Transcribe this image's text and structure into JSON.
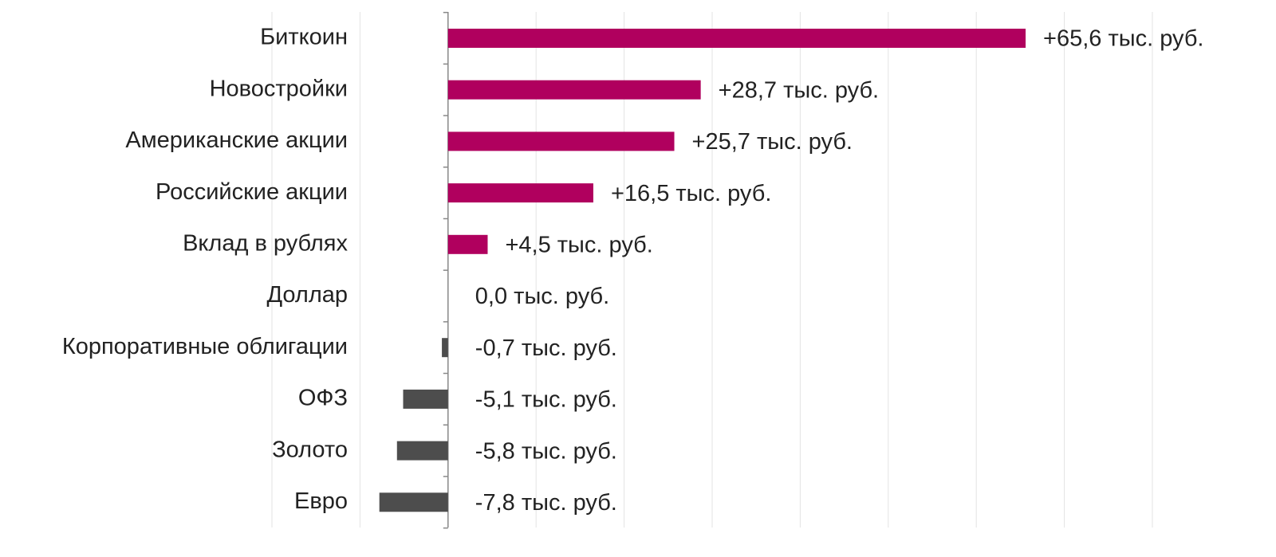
{
  "chart_data": {
    "type": "barh",
    "categories": [
      "Биткоин",
      "Новостройки",
      "Американские акции",
      "Российские акции",
      "Вклад в рублях",
      "Доллар",
      "Корпоративные облигации",
      "ОФЗ",
      "Золото",
      "Евро"
    ],
    "values": [
      65.6,
      28.7,
      25.7,
      16.5,
      4.5,
      0.0,
      -0.7,
      -5.1,
      -5.8,
      -7.8
    ],
    "value_labels": [
      "+65,6 тыс. руб.",
      "+28,7 тыс. руб.",
      "+25,7 тыс. руб.",
      "+16,5 тыс. руб.",
      "+4,5 тыс. руб.",
      "0,0 тыс. руб.",
      "-0,7 тыс. руб.",
      "-5,1 тыс. руб.",
      "-5,8 тыс. руб.",
      "-7,8 тыс. руб."
    ],
    "positive_color": "#b0005e",
    "negative_color": "#4d4d4d",
    "xlim": [
      -20,
      80
    ],
    "xticks": [
      -20,
      -10,
      0,
      10,
      20,
      30,
      40,
      50,
      60,
      70,
      80
    ],
    "show_tick_labels": false,
    "grid": true
  }
}
